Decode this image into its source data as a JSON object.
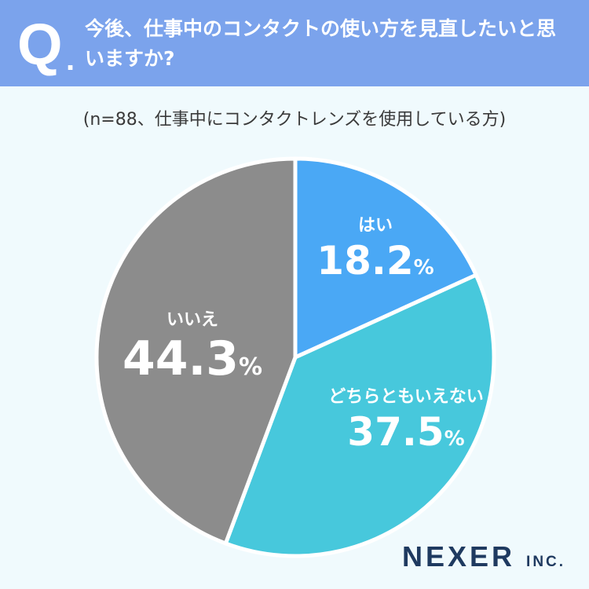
{
  "header": {
    "q_mark": "Q",
    "q_dot": ".",
    "question": "今後、仕事中のコンタクトの使い方を見直したいと思いますか?"
  },
  "subtitle": "(n=88、仕事中にコンタクトレンズを使用している方)",
  "chart_data": {
    "type": "pie",
    "start_angle": "12 o'clock",
    "direction": "clockwise",
    "slices": [
      {
        "label": "はい",
        "value": 18.2,
        "display": "18.2",
        "unit": "%",
        "color": "#4aa8f5"
      },
      {
        "label": "どちらともいえない",
        "value": 37.5,
        "display": "37.5",
        "unit": "%",
        "color": "#47c8dc"
      },
      {
        "label": "いいえ",
        "value": 44.3,
        "display": "44.3",
        "unit": "%",
        "color": "#8c8c8c"
      }
    ]
  },
  "logo": {
    "name": "NEXER",
    "suffix": "INC."
  }
}
